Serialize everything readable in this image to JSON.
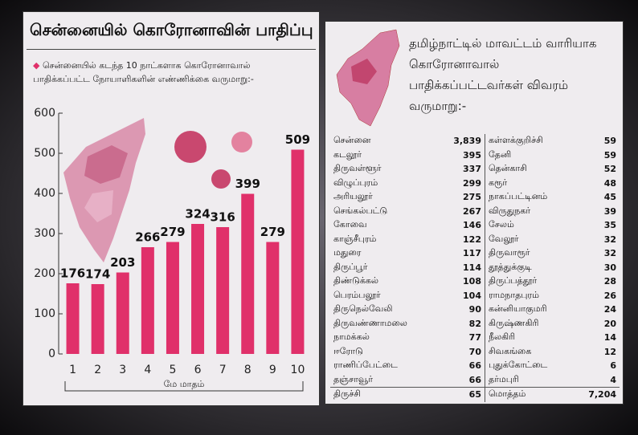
{
  "chart_data": {
    "type": "bar",
    "title": "சென்னையில் கொரோனாவின் பாதிப்பு",
    "subtitle": "சென்னையில் கடந்த 10 நாட்களாக கொரோனாவால் பாதிக்கப்பட்ட நோயாளிகளின் எண்ணிக்கை வருமாறு:-",
    "x_label": "மே மாதம்",
    "categories": [
      "1",
      "2",
      "3",
      "4",
      "5",
      "6",
      "7",
      "8",
      "9",
      "10"
    ],
    "values": [
      176,
      174,
      203,
      266,
      279,
      324,
      316,
      399,
      279,
      509
    ],
    "color": "#e0306a",
    "ylim": [
      0,
      600
    ],
    "yticks": [
      0,
      100,
      200,
      300,
      400,
      500,
      600
    ]
  },
  "table": {
    "heading": "தமிழ்நாட்டில் மாவட்டம் வாரியாக கொரோனாவால் பாதிக்கப்பட்டவர்கள் விவரம் வருமாறு:-",
    "rows": [
      [
        "சென்னை",
        "3,839",
        "கள்ளக்குறிச்சி",
        "59"
      ],
      [
        "கடலூர்",
        "395",
        "தேனி",
        "59"
      ],
      [
        "திருவள்ளூர்",
        "337",
        "தென்காசி",
        "52"
      ],
      [
        "விழுப்புரம்",
        "299",
        "கரூர்",
        "48"
      ],
      [
        "அரியலூர்",
        "275",
        "நாகப்பட்டினம்",
        "45"
      ],
      [
        "செங்கல்பட்டு",
        "267",
        "விருதுநகர்",
        "39"
      ],
      [
        "கோவை",
        "146",
        "சேலம்",
        "35"
      ],
      [
        "காஞ்சீபுரம்",
        "122",
        "வேலூர்",
        "32"
      ],
      [
        "மதுரை",
        "117",
        "திருவாரூர்",
        "32"
      ],
      [
        "திருப்பூர்",
        "114",
        "தூத்துக்குடி",
        "30"
      ],
      [
        "திண்டுக்கல்",
        "108",
        "திருப்பத்தூர்",
        "28"
      ],
      [
        "பெரம்பலூர்",
        "104",
        "ராமநாதபுரம்",
        "26"
      ],
      [
        "திருநெல்வேலி",
        "90",
        "கன்னியாகுமரி",
        "24"
      ],
      [
        "திருவண்ணாமலை",
        "82",
        "கிருஷ்ணகிரி",
        "20"
      ],
      [
        "நாமக்கல்",
        "77",
        "நீலகிரி",
        "14"
      ],
      [
        "ஈரோடு",
        "70",
        "சிவகங்கை",
        "12"
      ],
      [
        "ராணிப்பேட்டை",
        "66",
        "புதுக்கோட்டை",
        "6"
      ],
      [
        "தஞ்சாவூர்",
        "66",
        "தர்மபுரி",
        "4"
      ],
      [
        "திருச்சி",
        "65",
        "மொத்தம்",
        "7,204"
      ]
    ]
  }
}
